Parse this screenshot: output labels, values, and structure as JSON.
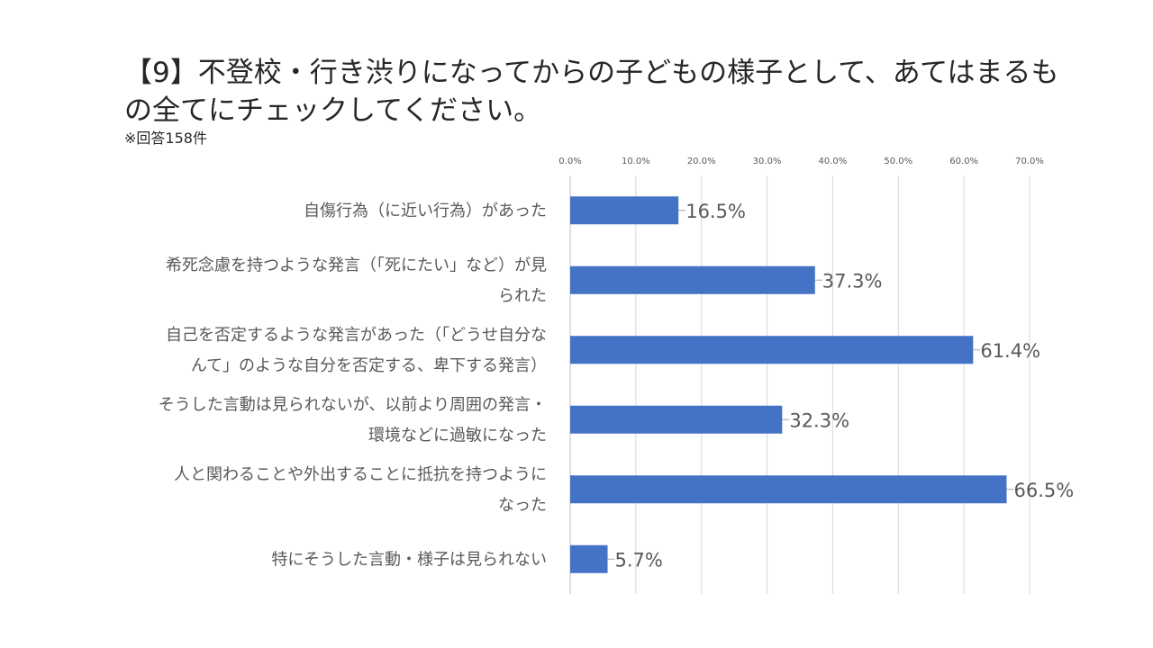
{
  "title": "【9】不登校・行き渋りになってからの子どもの様子として、あてはまるもの全てにチェックしてください。",
  "note": "※回答158件",
  "chart_data": {
    "type": "bar",
    "orientation": "horizontal",
    "xlim": [
      0,
      70
    ],
    "tick_values": [
      0,
      10,
      20,
      30,
      40,
      50,
      60,
      70
    ],
    "tick_labels": [
      "0.0%",
      "10.0%",
      "20.0%",
      "30.0%",
      "40.0%",
      "50.0%",
      "60.0%",
      "70.0%"
    ],
    "grid": true,
    "bar_color": "#4472C4",
    "categories": [
      [
        "自傷行為（に近い行為）があった"
      ],
      [
        "希死念慮を持つような発言（「死にたい」など）が見",
        "られた"
      ],
      [
        "自己を否定するような発言があった（「どうせ自分な",
        "んて」のような自分を否定する、卑下する発言）"
      ],
      [
        "そうした言動は見られないが、以前より周囲の発言・",
        "環境などに過敏になった"
      ],
      [
        "人と関わることや外出することに抵抗を持つように",
        "なった"
      ],
      [
        "特にそうした言動・様子は見られない"
      ]
    ],
    "values": [
      16.5,
      37.3,
      61.4,
      32.3,
      66.5,
      5.7
    ],
    "data_labels": [
      "16.5%",
      "37.3%",
      "61.4%",
      "32.3%",
      "66.5%",
      "5.7%"
    ]
  }
}
